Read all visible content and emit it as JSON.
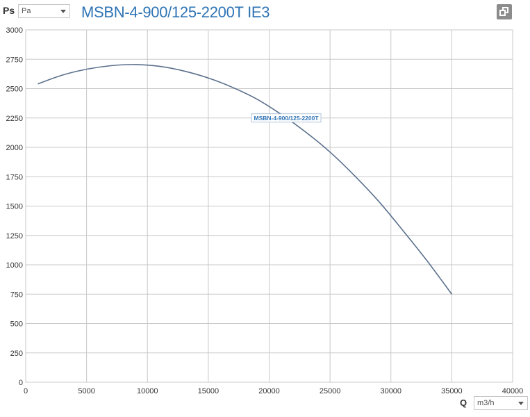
{
  "header": {
    "y_symbol": "Ps",
    "unit_selected": "Pa",
    "title": "MSBN-4-900/125-2200T IE3"
  },
  "footer": {
    "x_symbol": "Q",
    "flow_unit_selected": "m3/h"
  },
  "icons": {
    "copy": "copy-icon",
    "dropdown": "chevron-down-icon"
  },
  "colors": {
    "accent": "#2e74b5",
    "curve": "#5a6f8c",
    "grid": "#c8c8c8"
  },
  "chart_data": {
    "type": "line",
    "xlim": [
      0,
      40000
    ],
    "ylim": [
      0,
      3000
    ],
    "x_ticks": [
      "0",
      "5000",
      "10000",
      "15000",
      "20000",
      "25000",
      "30000",
      "35000",
      "40000"
    ],
    "y_ticks": [
      "0",
      "250",
      "500",
      "750",
      "1000",
      "1250",
      "1500",
      "1750",
      "2000",
      "2250",
      "2500",
      "2750",
      "3000"
    ],
    "grid": true,
    "series": [
      {
        "name": "MSBN-4-900/125-2200T",
        "x": [
          1000,
          3000,
          5000,
          7000,
          9000,
          11000,
          13000,
          15000,
          17000,
          19000,
          21000,
          23000,
          25000,
          27000,
          29000,
          31000,
          33000,
          35000
        ],
        "y": [
          2540,
          2615,
          2665,
          2695,
          2705,
          2690,
          2650,
          2590,
          2510,
          2410,
          2280,
          2130,
          1960,
          1760,
          1540,
          1290,
          1030,
          750
        ]
      }
    ]
  }
}
